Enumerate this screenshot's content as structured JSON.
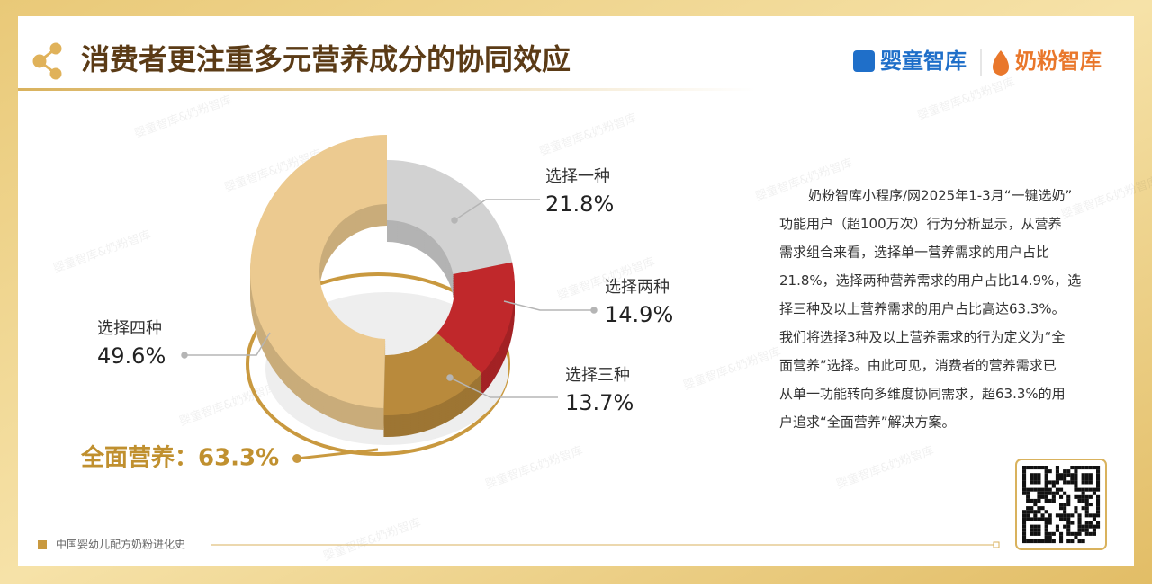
{
  "header": {
    "title": "消费者更注重多元营养成分的协同效应",
    "logos": [
      "婴童智库",
      "奶粉智库"
    ]
  },
  "watermark": "婴童智库&奶粉智库",
  "chart_data": {
    "type": "pie",
    "categories": [
      "选择一种",
      "选择两种",
      "选择三种",
      "选择四种"
    ],
    "values": [
      21.8,
      14.9,
      13.7,
      49.6
    ],
    "value_labels": [
      "21.8%",
      "14.9%",
      "13.7%",
      "49.6%"
    ],
    "colors": [
      "#d2d2d2",
      "#c0282b",
      "#b98a3c",
      "#ecca90"
    ],
    "annotation": "全面营养：63.3%"
  },
  "description": [
    "奶粉智库小程序/网2025年1-3月“一键选奶”",
    "功能用户（超100万次）行为分析显示，从营养",
    "需求组合来看，选择单一营养需求的用户占比",
    "21.8%，选择两种营养需求的用户占比14.9%，选",
    "择三种及以上营养需求的用户占比高达63.3%。",
    "我们将选择3种及以上营养需求的行为定义为“全",
    "面营养”选择。由此可见，消费者的营养需求已",
    "从单一功能转向多维度协同需求，超63.3%的用",
    "户追求“全面营养”解决方案。"
  ],
  "footer": "中国婴幼儿配方奶粉进化史"
}
